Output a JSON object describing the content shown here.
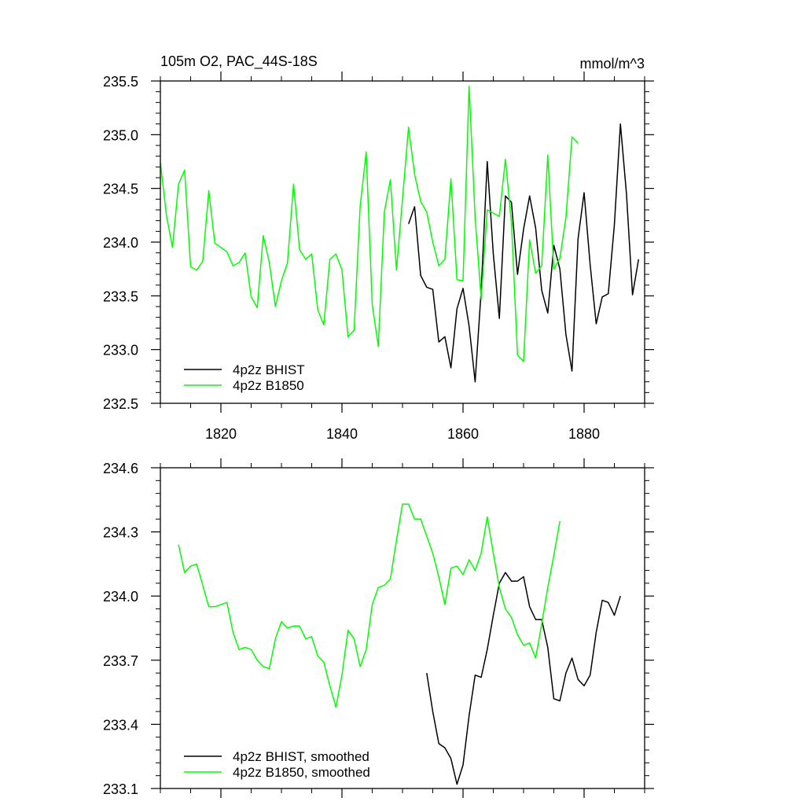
{
  "charts": [
    {
      "type": "line",
      "title_left": "105m O2, PAC_44S-18S",
      "title_right": "mmol/m^3",
      "xlim": [
        1810,
        1890
      ],
      "ylim": [
        232.5,
        235.5
      ],
      "x_ticks": [
        1820,
        1840,
        1860,
        1880
      ],
      "x_tick_labels": [
        "1820",
        "1840",
        "1860",
        "1880"
      ],
      "y_ticks": [
        232.5,
        233.0,
        233.5,
        234.0,
        234.5,
        235.0,
        235.5
      ],
      "y_tick_labels": [
        "232.5",
        "233.0",
        "233.5",
        "234.0",
        "234.5",
        "235.0",
        "235.5"
      ],
      "legend_position": "bottom-left",
      "series": [
        {
          "name": "4p2z BHIST",
          "color": "#000000",
          "x": [
            1851,
            1852,
            1853,
            1854,
            1855,
            1856,
            1857,
            1858,
            1859,
            1860,
            1861,
            1862,
            1863,
            1864,
            1865,
            1866,
            1867,
            1868,
            1869,
            1870,
            1871,
            1872,
            1873,
            1874,
            1875,
            1876,
            1877,
            1878,
            1879,
            1880,
            1881,
            1882,
            1883,
            1884,
            1885,
            1886,
            1887,
            1888,
            1889
          ],
          "y": [
            234.17,
            234.33,
            233.69,
            233.58,
            233.56,
            233.07,
            233.12,
            232.83,
            233.38,
            233.57,
            233.22,
            232.7,
            233.55,
            234.75,
            233.89,
            233.29,
            234.43,
            234.37,
            233.7,
            234.12,
            234.43,
            234.13,
            233.55,
            233.34,
            233.97,
            233.75,
            233.14,
            232.8,
            234.03,
            234.46,
            233.79,
            233.24,
            233.49,
            233.52,
            234.16,
            235.1,
            234.45,
            233.51,
            233.84
          ]
        },
        {
          "name": "4p2z B1850",
          "color": "#00ff00",
          "x": [
            1810,
            1811,
            1812,
            1813,
            1814,
            1815,
            1816,
            1817,
            1818,
            1819,
            1820,
            1821,
            1822,
            1823,
            1824,
            1825,
            1826,
            1827,
            1828,
            1829,
            1830,
            1831,
            1832,
            1833,
            1834,
            1835,
            1836,
            1837,
            1838,
            1839,
            1840,
            1841,
            1842,
            1843,
            1844,
            1845,
            1846,
            1847,
            1848,
            1849,
            1850,
            1851,
            1852,
            1853,
            1854,
            1855,
            1856,
            1857,
            1858,
            1859,
            1860,
            1861,
            1862,
            1863,
            1864,
            1865,
            1866,
            1867,
            1868,
            1869,
            1870,
            1871,
            1872,
            1873,
            1874,
            1875,
            1876,
            1877,
            1878,
            1879
          ],
          "y": [
            234.74,
            234.25,
            233.95,
            234.54,
            234.67,
            233.77,
            233.74,
            233.82,
            234.48,
            233.99,
            233.95,
            233.91,
            233.78,
            233.81,
            233.9,
            233.49,
            233.39,
            234.06,
            233.81,
            233.4,
            233.64,
            233.81,
            234.54,
            233.93,
            233.84,
            233.89,
            233.37,
            233.23,
            233.84,
            233.89,
            233.74,
            233.12,
            233.18,
            234.33,
            234.84,
            233.42,
            233.03,
            234.28,
            234.58,
            233.74,
            234.4,
            235.07,
            234.63,
            234.38,
            234.28,
            234.0,
            233.78,
            233.84,
            234.59,
            233.65,
            233.64,
            235.45,
            234.23,
            233.47,
            234.3,
            234.27,
            234.24,
            234.77,
            234.18,
            232.95,
            232.89,
            234.02,
            233.71,
            233.78,
            234.81,
            233.75,
            233.85,
            234.23,
            234.98,
            234.92
          ]
        }
      ]
    },
    {
      "type": "line",
      "xlim": [
        1810,
        1890
      ],
      "ylim": [
        233.1,
        234.6
      ],
      "x_ticks": [
        1820,
        1840,
        1860,
        1880
      ],
      "y_ticks": [
        233.1,
        233.4,
        233.7,
        234.0,
        234.3,
        234.6
      ],
      "y_tick_labels": [
        "233.1",
        "233.4",
        "233.7",
        "234.0",
        "234.3",
        "234.6"
      ],
      "legend_position": "bottom-left",
      "series": [
        {
          "name": "4p2z BHIST, smoothed",
          "color": "#000000",
          "x": [
            1854,
            1855,
            1856,
            1857,
            1858,
            1859,
            1860,
            1861,
            1862,
            1863,
            1864,
            1865,
            1866,
            1867,
            1868,
            1869,
            1870,
            1871,
            1872,
            1873,
            1874,
            1875,
            1876,
            1877,
            1878,
            1879,
            1880,
            1881,
            1882,
            1883,
            1884,
            1885,
            1886
          ],
          "y": [
            233.64,
            233.46,
            233.31,
            233.29,
            233.24,
            233.12,
            233.21,
            233.44,
            233.63,
            233.62,
            233.75,
            233.91,
            234.06,
            234.11,
            234.07,
            234.07,
            234.09,
            233.95,
            233.89,
            233.89,
            233.76,
            233.52,
            233.51,
            233.64,
            233.71,
            233.61,
            233.58,
            233.63,
            233.83,
            233.98,
            233.97,
            233.91,
            234.0
          ]
        },
        {
          "name": "4p2z B1850, smoothed",
          "color": "#00ff00",
          "x": [
            1813,
            1814,
            1815,
            1816,
            1817,
            1818,
            1819,
            1820,
            1821,
            1822,
            1823,
            1824,
            1825,
            1826,
            1827,
            1828,
            1829,
            1830,
            1831,
            1832,
            1833,
            1834,
            1835,
            1836,
            1837,
            1838,
            1839,
            1840,
            1841,
            1842,
            1843,
            1844,
            1845,
            1846,
            1847,
            1848,
            1849,
            1850,
            1851,
            1852,
            1853,
            1854,
            1855,
            1856,
            1857,
            1858,
            1859,
            1860,
            1861,
            1862,
            1863,
            1864,
            1865,
            1866,
            1867,
            1868,
            1869,
            1870,
            1871,
            1872,
            1873,
            1874,
            1875,
            1876
          ],
          "y": [
            234.24,
            234.11,
            234.14,
            234.15,
            234.05,
            233.95,
            233.95,
            233.96,
            233.97,
            233.83,
            233.75,
            233.76,
            233.75,
            233.7,
            233.67,
            233.66,
            233.8,
            233.88,
            233.85,
            233.86,
            233.86,
            233.8,
            233.81,
            233.72,
            233.69,
            233.58,
            233.48,
            233.63,
            233.84,
            233.8,
            233.67,
            233.75,
            233.96,
            234.04,
            234.05,
            234.08,
            234.26,
            234.43,
            234.43,
            234.36,
            234.36,
            234.28,
            234.2,
            234.09,
            233.96,
            234.13,
            234.14,
            234.1,
            234.17,
            234.12,
            234.2,
            234.37,
            234.2,
            234.04,
            233.94,
            233.9,
            233.82,
            233.77,
            233.78,
            233.71,
            233.87,
            234.04,
            234.19,
            234.35
          ]
        }
      ]
    }
  ]
}
